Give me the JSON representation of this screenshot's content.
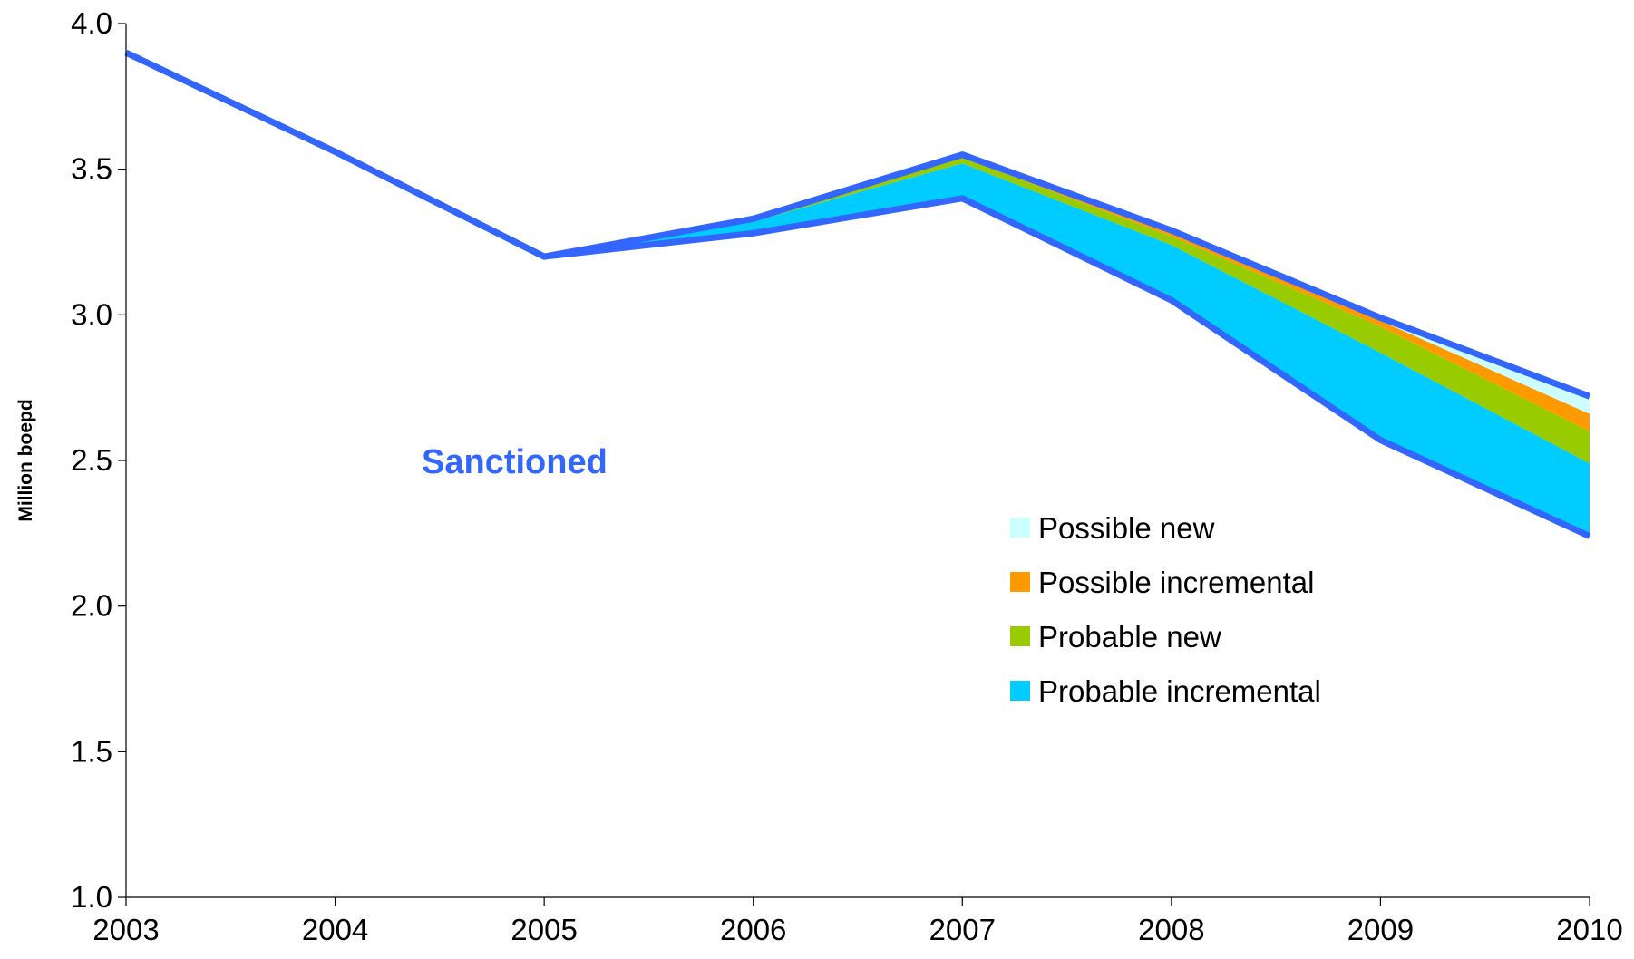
{
  "chart_data": {
    "type": "area",
    "ylabel": "Million boepd",
    "ylim": [
      1.0,
      4.0
    ],
    "y_ticks": [
      "1.0",
      "1.5",
      "2.0",
      "2.5",
      "3.0",
      "3.5",
      "4.0"
    ],
    "categories": [
      "2003",
      "2004",
      "2005",
      "2006",
      "2007",
      "2008",
      "2009",
      "2010"
    ],
    "annotation": "Sanctioned",
    "legend_position": "center-right",
    "base_series": {
      "name": "Sanctioned",
      "color": "#3366FF",
      "values": [
        3.9,
        3.56,
        3.2,
        3.28,
        3.4,
        3.05,
        2.57,
        2.24
      ]
    },
    "series": [
      {
        "name": "Probable incremental",
        "color": "#00CCFF",
        "values": [
          0,
          0,
          0,
          0.04,
          0.12,
          0.19,
          0.3,
          0.25
        ]
      },
      {
        "name": "Probable new",
        "color": "#99CC00",
        "values": [
          0,
          0,
          0,
          0.005,
          0.02,
          0.03,
          0.09,
          0.11
        ]
      },
      {
        "name": "Possible incremental",
        "color": "#FF9900",
        "values": [
          0,
          0,
          0,
          0.003,
          0.005,
          0.01,
          0.02,
          0.06
        ]
      },
      {
        "name": "Possible new",
        "color": "#CCFFFF",
        "values": [
          0,
          0,
          0,
          0.002,
          0.005,
          0.01,
          0.01,
          0.06
        ]
      }
    ],
    "legend_order": [
      "Possible new",
      "Possible incremental",
      "Probable new",
      "Probable incremental"
    ]
  }
}
